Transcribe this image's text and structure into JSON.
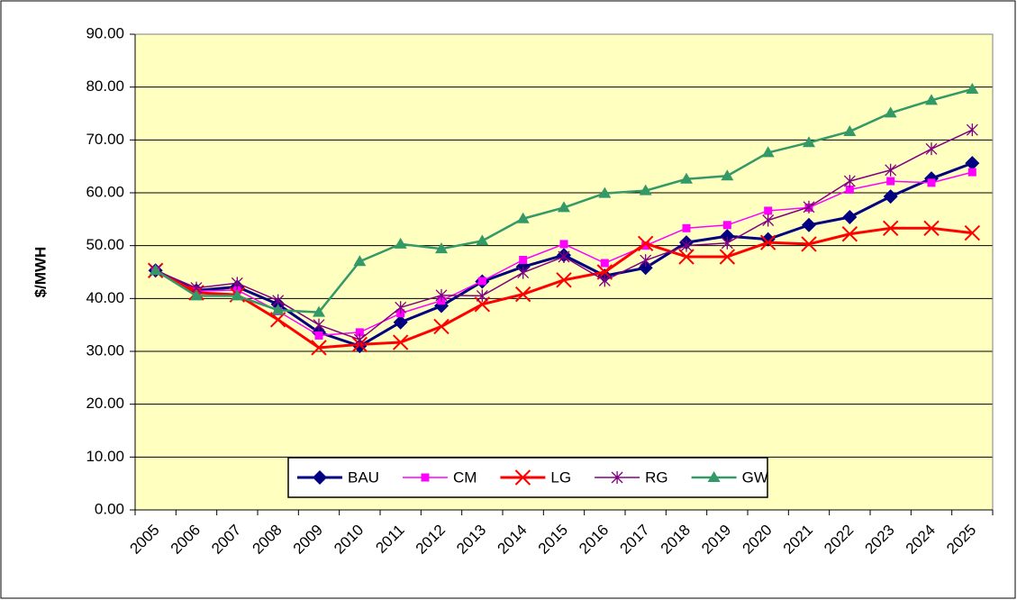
{
  "chart_data": {
    "type": "line",
    "y_label": "$/MWH",
    "categories": [
      "2005",
      "2006",
      "2007",
      "2008",
      "2009",
      "2010",
      "2011",
      "2012",
      "2013",
      "2014",
      "2015",
      "2016",
      "2017",
      "2018",
      "2019",
      "2020",
      "2021",
      "2022",
      "2023",
      "2024",
      "2025"
    ],
    "series": [
      {
        "name": "BAU",
        "color": "#000080",
        "marker": "diamond",
        "values": [
          45.3,
          41.5,
          42.2,
          38.9,
          33.6,
          31.0,
          35.5,
          38.6,
          43.2,
          46.0,
          48.2,
          44.3,
          45.8,
          50.6,
          51.8,
          51.2,
          53.9,
          55.4,
          59.3,
          62.7,
          65.6
        ]
      },
      {
        "name": "CM",
        "color": "#FF00FF",
        "marker": "square",
        "values": [
          45.3,
          41.4,
          41.6,
          37.6,
          33.0,
          33.6,
          37.2,
          39.6,
          43.3,
          47.3,
          50.3,
          46.7,
          50.0,
          53.3,
          53.9,
          56.6,
          57.2,
          60.6,
          62.2,
          61.9,
          63.9
        ]
      },
      {
        "name": "LG",
        "color": "#FF0000",
        "marker": "x",
        "values": [
          45.3,
          41.1,
          40.7,
          36.0,
          30.7,
          31.3,
          31.7,
          34.7,
          38.9,
          40.8,
          43.5,
          45.0,
          50.4,
          47.9,
          47.9,
          50.6,
          50.3,
          52.2,
          53.3,
          53.3,
          52.4
        ]
      },
      {
        "name": "RG",
        "color": "#800080",
        "marker": "star",
        "values": [
          45.3,
          42.0,
          42.9,
          39.6,
          35.0,
          32.2,
          38.3,
          40.6,
          40.5,
          44.9,
          47.9,
          43.4,
          47.2,
          50.0,
          50.5,
          54.8,
          57.3,
          62.2,
          64.3,
          68.3,
          71.9
        ]
      },
      {
        "name": "GW",
        "color": "#339966",
        "marker": "triangle",
        "values": [
          45.3,
          40.5,
          40.5,
          37.8,
          37.4,
          47.0,
          50.3,
          49.4,
          50.9,
          55.1,
          57.2,
          59.9,
          60.4,
          62.6,
          63.2,
          67.6,
          69.5,
          71.6,
          75.1,
          77.5,
          79.6
        ]
      }
    ],
    "ylim": [
      0,
      90
    ],
    "yticks": [
      {
        "value": 0,
        "label": "0.00"
      },
      {
        "value": 10,
        "label": "10.00"
      },
      {
        "value": 20,
        "label": "20.00"
      },
      {
        "value": 30,
        "label": "30.00"
      },
      {
        "value": 40,
        "label": "40.00"
      },
      {
        "value": 50,
        "label": "50.00"
      },
      {
        "value": 60,
        "label": "60.00"
      },
      {
        "value": 70,
        "label": "70.00"
      },
      {
        "value": 80,
        "label": "80.00"
      },
      {
        "value": 90,
        "label": "90.00"
      }
    ],
    "grid": true,
    "plot_background": "#FFFFC0",
    "legend_position": "bottom"
  }
}
